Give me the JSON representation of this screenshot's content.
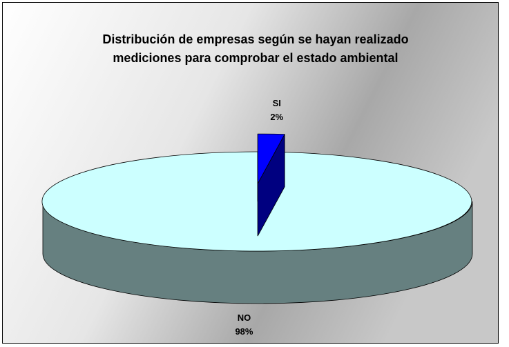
{
  "chart_data": {
    "type": "pie",
    "title": "Distribución de empresas según se hayan realizado mediciones para comprobar el estado ambiental",
    "categories": [
      "SI",
      "NO"
    ],
    "values": [
      2,
      98
    ],
    "value_labels": [
      "2%",
      "98%"
    ],
    "colors": [
      "#0000ff",
      "#ccffff"
    ],
    "side_colors": [
      "#000080",
      "#668080"
    ],
    "explode": [
      true,
      false
    ]
  }
}
